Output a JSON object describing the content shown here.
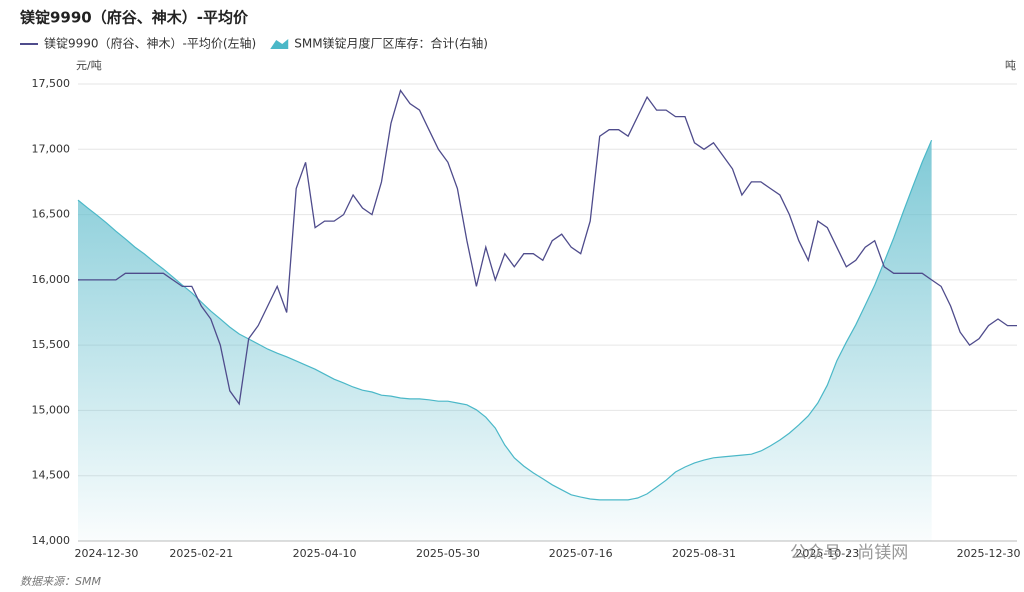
{
  "chart_data": {
    "type": "line-area",
    "title": "镁锭9990（府谷、神木）-平均价",
    "y_unit": "元/吨",
    "y2_unit": "吨",
    "source": "数据来源：SMM",
    "watermark": "公众号 · 尚镁网",
    "categories": [
      null,
      null,
      null,
      "2024-12-30",
      null,
      null,
      null,
      null,
      null,
      null,
      null,
      null,
      null,
      "2025-02-21",
      null,
      null,
      null,
      null,
      null,
      null,
      null,
      null,
      null,
      null,
      null,
      null,
      "2025-04-10",
      null,
      null,
      null,
      null,
      null,
      null,
      null,
      null,
      null,
      null,
      null,
      null,
      "2025-05-30",
      null,
      null,
      null,
      null,
      null,
      null,
      null,
      null,
      null,
      null,
      null,
      null,
      null,
      "2025-07-16",
      null,
      null,
      null,
      null,
      null,
      null,
      null,
      null,
      null,
      null,
      null,
      null,
      "2025-08-31",
      null,
      null,
      null,
      null,
      null,
      null,
      null,
      null,
      null,
      null,
      null,
      null,
      "2025-10-23",
      null,
      null,
      null,
      null,
      null,
      null,
      null,
      null,
      null,
      null,
      null,
      null,
      null,
      null,
      null,
      null,
      "2025-12-30",
      null,
      null,
      null
    ],
    "series": [
      {
        "name": "镁锭9990（府谷、神木）-平均价(左轴)",
        "kind": "line",
        "color": "#4f4c8c",
        "values": [
          16000,
          16000,
          16000,
          16000,
          16000,
          16050,
          16050,
          16050,
          16050,
          16050,
          16000,
          15950,
          15950,
          15800,
          15700,
          15500,
          15150,
          15050,
          15550,
          15650,
          15800,
          15950,
          15750,
          16700,
          16900,
          16400,
          16450,
          16450,
          16500,
          16650,
          16550,
          16500,
          16750,
          17200,
          17450,
          17350,
          17300,
          17150,
          17000,
          16900,
          16700,
          16300,
          15950,
          16250,
          16000,
          16200,
          16100,
          16200,
          16200,
          16150,
          16300,
          16350,
          16250,
          16200,
          16450,
          17100,
          17150,
          17150,
          17100,
          17250,
          17400,
          17300,
          17300,
          17250,
          17250,
          17050,
          17000,
          17050,
          16950,
          16850,
          16650,
          16750,
          16750,
          16700,
          16650,
          16500,
          16300,
          16150,
          16450,
          16400,
          16250,
          16100,
          16150,
          16250,
          16300,
          16100,
          16050,
          16050,
          16050,
          16050,
          16000,
          15950,
          15800,
          15600,
          15500,
          15550,
          15650,
          15700,
          15650,
          15650
        ]
      },
      {
        "name": "SMM镁锭月度厂区库存：合计(右轴)",
        "kind": "area",
        "axis": "y2",
        "color": "#4bb8c8",
        "values": [
          74.6,
          72.9,
          71.3,
          69.6,
          67.8,
          66.1,
          64.3,
          62.8,
          61.1,
          59.5,
          57.8,
          56.0,
          54.3,
          52.3,
          50.3,
          48.6,
          46.8,
          45.3,
          44.2,
          43.1,
          42.0,
          41.1,
          40.3,
          39.4,
          38.5,
          37.6,
          36.5,
          35.4,
          34.6,
          33.7,
          33.0,
          32.6,
          31.9,
          31.7,
          31.3,
          31.1,
          31.1,
          30.9,
          30.6,
          30.6,
          30.2,
          29.8,
          28.7,
          27.1,
          24.7,
          21.0,
          18.2,
          16.4,
          14.9,
          13.6,
          12.3,
          11.2,
          10.1,
          9.6,
          9.2,
          9.0,
          9.0,
          9.0,
          9.0,
          9.4,
          10.3,
          11.8,
          13.3,
          15.1,
          16.2,
          17.1,
          17.7,
          18.2,
          18.4,
          18.6,
          18.8,
          19.0,
          19.7,
          20.8,
          22.1,
          23.6,
          25.4,
          27.4,
          30.2,
          34.1,
          39.4,
          43.5,
          47.3,
          51.6,
          56.0,
          61.1,
          66.3,
          72.0,
          77.5,
          82.9,
          87.7,
          null,
          null,
          null,
          null,
          null,
          null,
          null,
          null,
          null
        ]
      }
    ],
    "ylim": [
      14000,
      17500
    ],
    "yticks": [
      {
        "value": 14000,
        "label": "14,000"
      },
      {
        "value": 14500,
        "label": "14,500"
      },
      {
        "value": 15000,
        "label": "15,000"
      },
      {
        "value": 15500,
        "label": "15,500"
      },
      {
        "value": 16000,
        "label": "16,000"
      },
      {
        "value": 16500,
        "label": "16,500"
      },
      {
        "value": 17000,
        "label": "17,000"
      },
      {
        "value": 17500,
        "label": "17,500"
      }
    ],
    "y2lim": [
      0,
      100
    ],
    "grid": true
  }
}
